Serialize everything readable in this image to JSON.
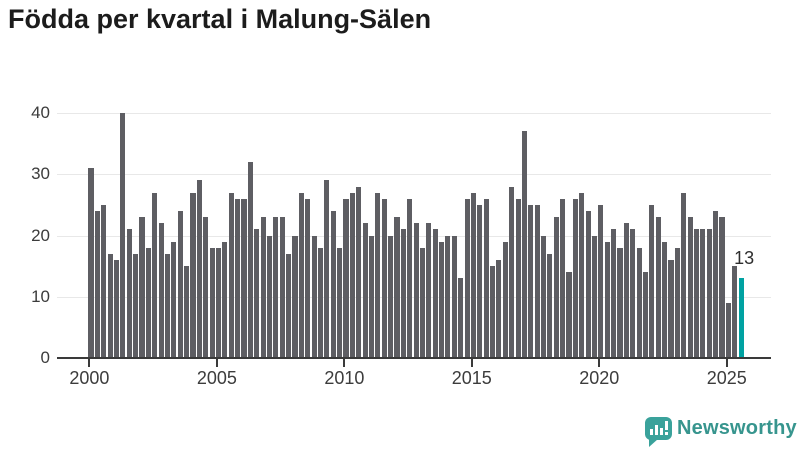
{
  "title": "Födda per kvartal i Malung-Sälen",
  "chart_data": {
    "type": "bar",
    "title": "Födda per kvartal i Malung-Sälen",
    "x_unit": "quarter",
    "start_quarter": "2000 Q1",
    "end_quarter": "2025 Q3",
    "values": [
      31,
      24,
      25,
      17,
      16,
      40,
      21,
      17,
      23,
      18,
      27,
      22,
      17,
      19,
      24,
      15,
      27,
      29,
      23,
      18,
      18,
      19,
      27,
      26,
      26,
      32,
      21,
      23,
      20,
      23,
      23,
      17,
      20,
      27,
      26,
      20,
      18,
      29,
      24,
      18,
      26,
      27,
      28,
      22,
      20,
      27,
      26,
      20,
      23,
      21,
      26,
      22,
      18,
      22,
      21,
      19,
      20,
      20,
      13,
      26,
      27,
      25,
      26,
      15,
      16,
      19,
      28,
      26,
      37,
      25,
      25,
      20,
      17,
      23,
      26,
      14,
      26,
      27,
      24,
      20,
      25,
      19,
      21,
      18,
      22,
      21,
      18,
      14,
      25,
      23,
      19,
      16,
      18,
      27,
      23,
      21,
      21,
      21,
      24,
      23,
      9,
      15,
      13
    ],
    "x_ticks": [
      {
        "label": "2000",
        "quarter_index": 0
      },
      {
        "label": "2005",
        "quarter_index": 20
      },
      {
        "label": "2010",
        "quarter_index": 40
      },
      {
        "label": "2015",
        "quarter_index": 60
      },
      {
        "label": "2020",
        "quarter_index": 80
      },
      {
        "label": "2025",
        "quarter_index": 100
      }
    ],
    "yticks": [
      0,
      10,
      20,
      30,
      40
    ],
    "ylim": [
      0,
      40
    ],
    "grid": true,
    "legend": "none",
    "bar_color": "#5e5e63",
    "highlight": {
      "index": 102,
      "quarter": "2025 Q3",
      "value": 13,
      "label": "13",
      "color": "#00a2a2"
    }
  },
  "logo": {
    "text": "Newsworthy",
    "icon": "newsworthy-logo-icon",
    "icon_color": "#3aa29b",
    "text_color": "#37958e"
  }
}
